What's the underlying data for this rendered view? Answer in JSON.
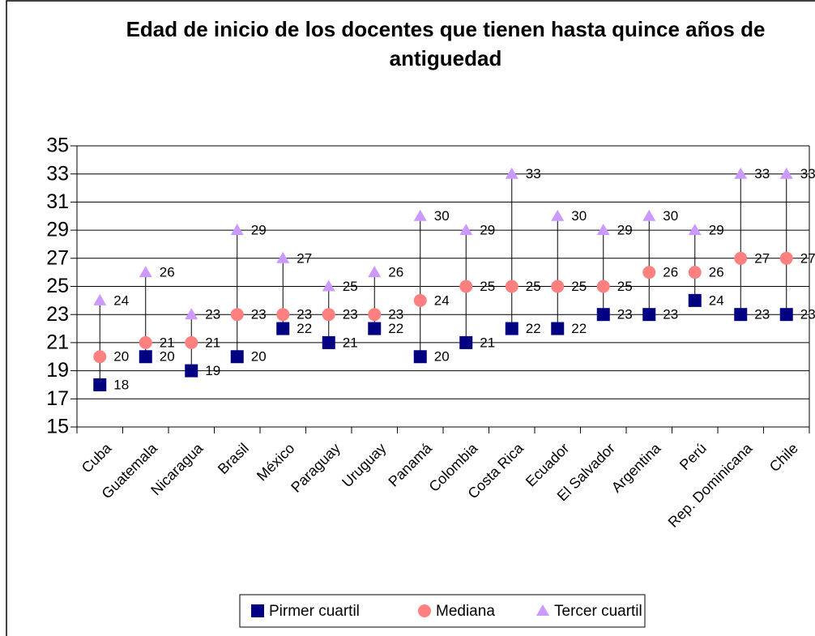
{
  "chart_data": {
    "type": "hilo-scatter",
    "title": "Edad de inicio de los docentes que tienen hasta quince años de antiguedad",
    "categories": [
      "Cuba",
      "Guatemala",
      "Nicaragua",
      "Brasil",
      "México",
      "Paraguay",
      "Uruguay",
      "Panamá",
      "Colombia",
      "Costa Rica",
      "Ecuador",
      "El Salvador",
      "Argentina",
      "Perú",
      "Rep. Dominicana",
      "Chile"
    ],
    "series": [
      {
        "name": "Pirmer cuartil",
        "color": "#000080",
        "marker": "square",
        "values": [
          18,
          20,
          19,
          20,
          22,
          21,
          22,
          20,
          21,
          22,
          22,
          23,
          23,
          24,
          23,
          23
        ]
      },
      {
        "name": "Mediana",
        "color": "#FF8080",
        "marker": "circle",
        "values": [
          20,
          21,
          21,
          23,
          23,
          23,
          23,
          24,
          25,
          25,
          25,
          25,
          26,
          26,
          27,
          27
        ]
      },
      {
        "name": "Tercer cuartil",
        "color": "#CC99FF",
        "marker": "triangle",
        "values": [
          24,
          26,
          23,
          29,
          27,
          25,
          26,
          30,
          29,
          33,
          30,
          29,
          30,
          29,
          33,
          33
        ]
      }
    ],
    "ylim": [
      15,
      35
    ],
    "yticks": [
      15,
      17,
      19,
      21,
      23,
      25,
      27,
      29,
      31,
      33,
      35
    ],
    "grid": true,
    "legend": "bottom"
  }
}
